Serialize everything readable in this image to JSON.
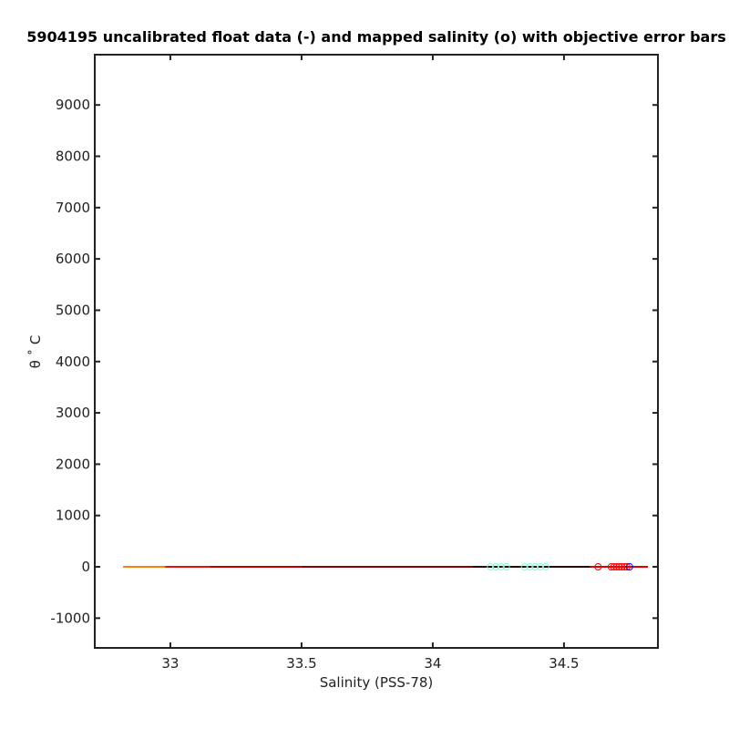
{
  "chart_data": {
    "type": "line",
    "title": "5904195 uncalibrated float data (-) and mapped salinity (o) with objective error bars",
    "xlabel": "Salinity (PSS-78)",
    "ylabel": "θ ˚ C",
    "xlim": [
      32.712,
      34.858
    ],
    "ylim": [
      -1580,
      9980
    ],
    "xticks": [
      33,
      33.5,
      34,
      34.5
    ],
    "yticks": [
      -1000,
      0,
      1000,
      2000,
      3000,
      4000,
      5000,
      6000,
      7000,
      8000,
      9000
    ],
    "grid": false,
    "series": [
      {
        "style": "line",
        "color": "#ff7f0e",
        "x": [
          32.82,
          32.98
        ],
        "values": [
          0,
          0
        ]
      },
      {
        "style": "line",
        "color": "#e8120c",
        "x": [
          32.98,
          33.15
        ],
        "values": [
          0,
          0
        ]
      },
      {
        "style": "line",
        "color": "#c00000",
        "x": [
          33.15,
          33.5
        ],
        "values": [
          0,
          0
        ]
      },
      {
        "style": "line",
        "color": "#8b0000",
        "x": [
          33.5,
          34.15
        ],
        "values": [
          0,
          0
        ]
      },
      {
        "style": "line",
        "color": "#2a0a0a",
        "x": [
          34.15,
          34.6
        ],
        "values": [
          0,
          0
        ]
      },
      {
        "style": "line",
        "color": "#e00000",
        "x": [
          34.6,
          34.82
        ],
        "values": [
          0,
          0
        ]
      },
      {
        "style": "marker",
        "color": "#7fffd4",
        "x": [
          34.22,
          34.24,
          34.26,
          34.28,
          34.35,
          34.37,
          34.39,
          34.41,
          34.43
        ],
        "values": [
          0,
          0,
          0,
          0,
          0,
          0,
          0,
          0,
          0
        ]
      },
      {
        "style": "marker",
        "color": "#ff0000",
        "x": [
          34.63,
          34.68,
          34.69,
          34.7,
          34.71,
          34.72,
          34.73,
          34.74
        ],
        "values": [
          0,
          0,
          0,
          0,
          0,
          0,
          0,
          0
        ]
      },
      {
        "style": "marker",
        "color": "#0000ff",
        "x": [
          34.75
        ],
        "values": [
          0
        ]
      }
    ]
  }
}
